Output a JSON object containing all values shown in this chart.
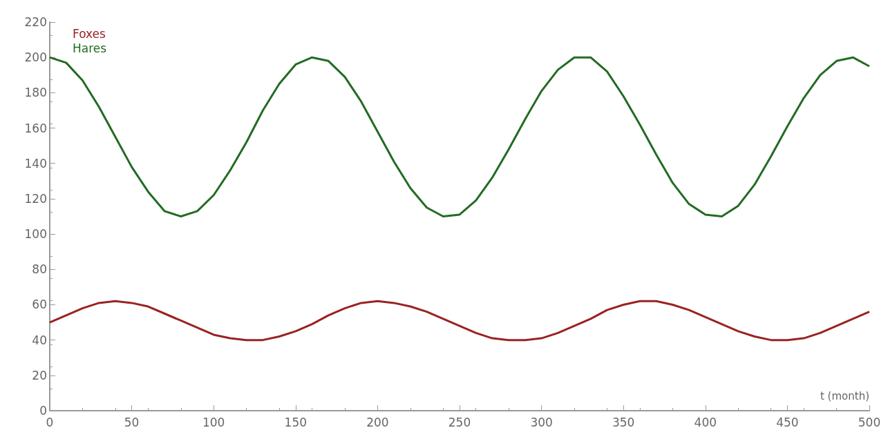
{
  "chart_data": {
    "type": "line",
    "xlabel": "t (month)",
    "x": [
      0,
      10,
      20,
      30,
      40,
      50,
      60,
      70,
      80,
      90,
      100,
      110,
      120,
      130,
      140,
      150,
      160,
      170,
      180,
      190,
      200,
      210,
      220,
      230,
      240,
      250,
      260,
      270,
      280,
      290,
      300,
      310,
      320,
      330,
      340,
      350,
      360,
      370,
      380,
      390,
      400,
      410,
      420,
      430,
      440,
      450,
      460,
      470,
      480,
      490,
      500
    ],
    "series": [
      {
        "name": "Foxes",
        "color": "#9a2222",
        "values": [
          50,
          54,
          58,
          61,
          62,
          61,
          59,
          55,
          51,
          47,
          43,
          41,
          40,
          40,
          42,
          45,
          49,
          54,
          58,
          61,
          62,
          61,
          59,
          56,
          52,
          48,
          44,
          41,
          40,
          40,
          41,
          44,
          48,
          52,
          57,
          60,
          62,
          62,
          60,
          57,
          53,
          49,
          45,
          42,
          40,
          40,
          41,
          44,
          48,
          52,
          56
        ]
      },
      {
        "name": "Hares",
        "color": "#236b23",
        "values": [
          200,
          197,
          187,
          172,
          155,
          138,
          124,
          113,
          110,
          113,
          122,
          136,
          152,
          170,
          185,
          196,
          200,
          198,
          189,
          175,
          158,
          141,
          126,
          115,
          110,
          111,
          119,
          132,
          148,
          165,
          181,
          193,
          200,
          200,
          192,
          178,
          162,
          145,
          129,
          117,
          111,
          110,
          116,
          128,
          144,
          161,
          177,
          190,
          198,
          200,
          195
        ]
      }
    ],
    "xlim": [
      0,
      500
    ],
    "xticks": [
      0,
      50,
      100,
      150,
      200,
      250,
      300,
      350,
      400,
      450,
      500
    ],
    "ylim": [
      0,
      220
    ],
    "yticks": [
      0,
      20,
      40,
      60,
      80,
      100,
      120,
      140,
      160,
      180,
      200,
      220
    ],
    "grid": false,
    "legend": "top left",
    "marker": "none",
    "line_style": "solid"
  }
}
